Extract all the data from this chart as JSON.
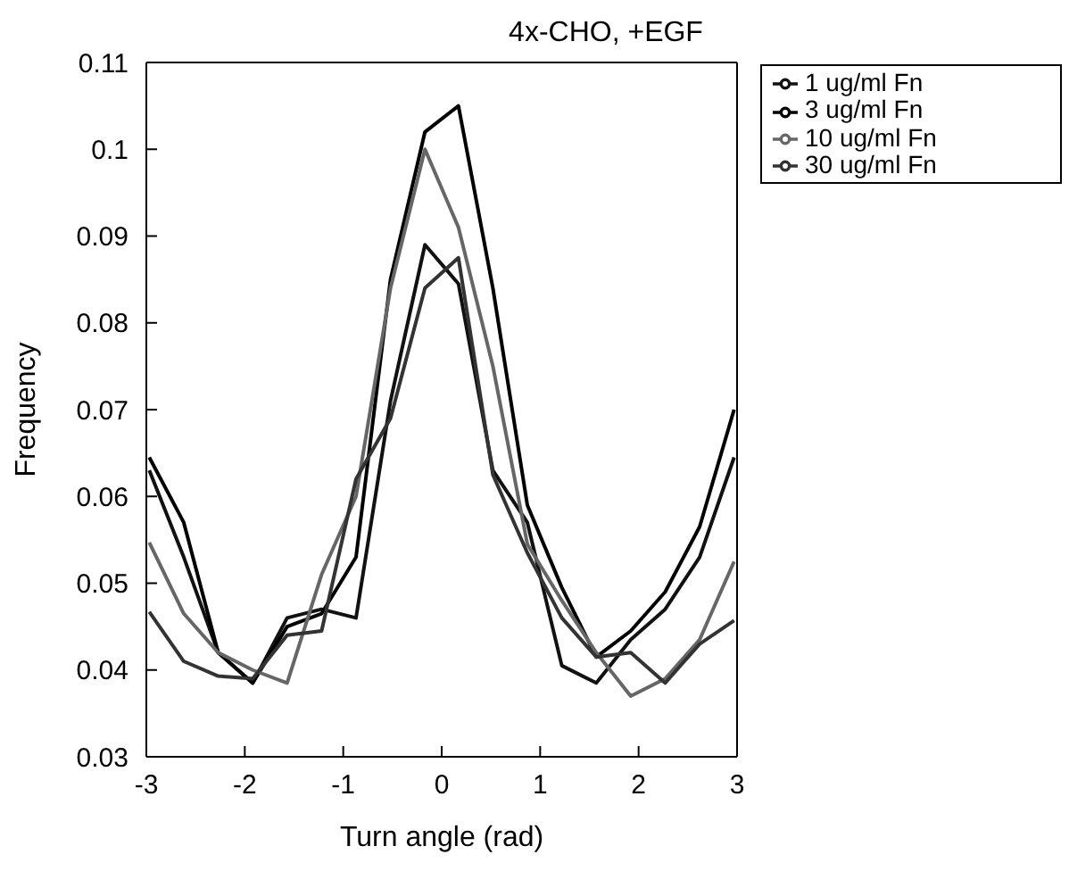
{
  "chart_data": {
    "type": "line",
    "title": "4x-CHO, +EGF",
    "xlabel": "Turn angle (rad)",
    "ylabel": "Frequency",
    "x": [
      -2.97,
      -2.62,
      -2.27,
      -1.92,
      -1.57,
      -1.22,
      -0.87,
      -0.52,
      -0.17,
      0.17,
      0.52,
      0.87,
      1.22,
      1.57,
      1.92,
      2.27,
      2.62,
      2.97
    ],
    "series": [
      {
        "name": "1 ug/ml Fn",
        "color": "#111111",
        "values": [
          0.063,
          0.053,
          0.042,
          0.0385,
          0.046,
          0.047,
          0.046,
          0.071,
          0.089,
          0.0845,
          0.063,
          0.057,
          0.0405,
          0.0385,
          0.0435,
          0.047,
          0.053,
          0.0645
        ]
      },
      {
        "name": "3 ug/ml Fn",
        "color": "#000000",
        "values": [
          0.0645,
          0.057,
          0.042,
          0.0385,
          0.045,
          0.0465,
          0.053,
          0.085,
          0.102,
          0.105,
          0.084,
          0.059,
          0.0495,
          0.0415,
          0.0445,
          0.049,
          0.0565,
          0.07
        ]
      },
      {
        "name": "10 ug/ml Fn",
        "color": "#666666",
        "values": [
          0.0547,
          0.0465,
          0.042,
          0.04,
          0.0385,
          0.051,
          0.06,
          0.084,
          0.1,
          0.091,
          0.075,
          0.0545,
          0.048,
          0.042,
          0.037,
          0.039,
          0.0435,
          0.0525
        ]
      },
      {
        "name": "30 ug/ml Fn",
        "color": "#333333",
        "values": [
          0.0467,
          0.041,
          0.0393,
          0.039,
          0.044,
          0.0445,
          0.062,
          0.069,
          0.084,
          0.0875,
          0.0625,
          0.0535,
          0.046,
          0.0415,
          0.042,
          0.0385,
          0.043,
          0.0457
        ]
      }
    ],
    "xlim": [
      -3,
      3
    ],
    "xticks": [
      -3,
      -2,
      -1,
      0,
      1,
      2,
      3
    ],
    "ylim": [
      0.03,
      0.11
    ],
    "yticks": [
      0.03,
      0.04,
      0.05,
      0.06,
      0.07,
      0.08,
      0.09,
      0.1,
      0.11
    ],
    "legend": "top right",
    "grid": false,
    "marker": "none",
    "line_style": "solid"
  }
}
